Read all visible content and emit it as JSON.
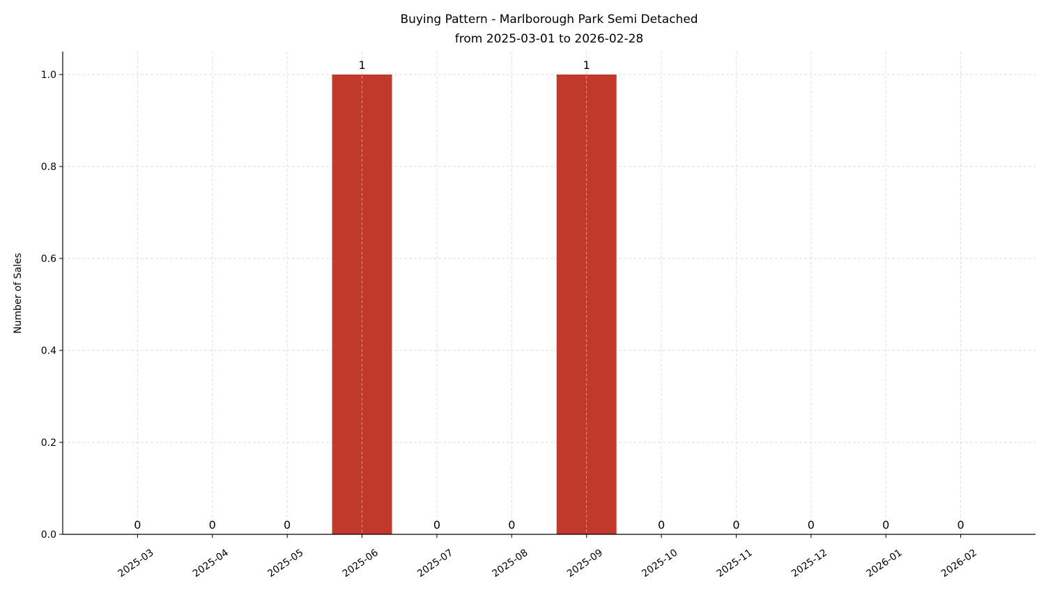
{
  "chart_data": {
    "type": "bar",
    "title": "Buying Pattern - Marlborough Park Semi Detached",
    "subtitle": "from 2025-03-01 to 2026-02-28",
    "xlabel": "",
    "ylabel": "Number of Sales",
    "categories": [
      "2025-03",
      "2025-04",
      "2025-05",
      "2025-06",
      "2025-07",
      "2025-08",
      "2025-09",
      "2025-10",
      "2025-11",
      "2025-12",
      "2026-01",
      "2026-02"
    ],
    "values": [
      0,
      0,
      0,
      1,
      0,
      0,
      1,
      0,
      0,
      0,
      0,
      0
    ],
    "data_labels": [
      "0",
      "0",
      "0",
      "1",
      "0",
      "0",
      "1",
      "0",
      "0",
      "0",
      "0",
      "0"
    ],
    "ylim": [
      0,
      1.05
    ],
    "yticks": [
      "0.0",
      "0.2",
      "0.4",
      "0.6",
      "0.8",
      "1.0"
    ],
    "grid": true,
    "bar_color": "#c0392b"
  }
}
